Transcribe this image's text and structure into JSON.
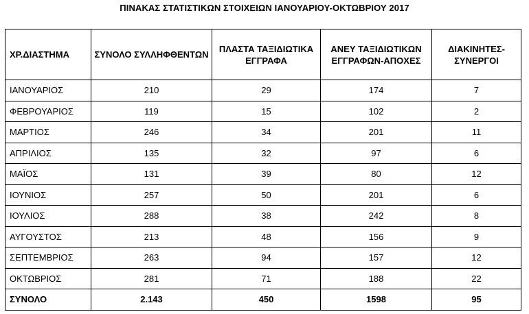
{
  "title": "ΠΙΝΑΚΑΣ ΣΤΑΤΙΣΤΙΚΩΝ ΣΤΟΙΧΕΙΩΝ ΙΑΝΟΥΑΡΙΟΥ-ΟΚΤΩΒΡΙΟΥ 2017",
  "headers": [
    "ΧΡ.ΔΙΑΣΤΗΜΑ",
    "ΣΥΝΟΛΟ ΣΥΛΛΗΦΘΕΝΤΩΝ",
    "ΠΛΑΣΤΑ ΤΑΞΙΔΙΩΤΙΚΑ ΕΓΓΡΑΦΑ",
    "ΑΝΕΥ ΤΑΞΙΔΙΩΤΙΚΩΝ ΕΓΓΡΑΦΩΝ-ΑΠΟΧΕΣ",
    "ΔΙΑΚΙΝΗΤΕΣ-ΣΥΝΕΡΓΟΙ"
  ],
  "rows": [
    [
      "ΙΑΝΟΥΑΡΙΟΣ",
      "210",
      "29",
      "174",
      "7"
    ],
    [
      "ΦΕΒΡΟΥΑΡΙΟΣ",
      "119",
      "15",
      "102",
      "2"
    ],
    [
      "ΜΑΡΤΙΟΣ",
      "246",
      "34",
      "201",
      "11"
    ],
    [
      "ΑΠΡΙΛΙΟΣ",
      "135",
      "32",
      "97",
      "6"
    ],
    [
      "ΜΑΪΟΣ",
      "131",
      "39",
      "80",
      "12"
    ],
    [
      "ΙΟΥΝΙΟΣ",
      "257",
      "50",
      "201",
      "6"
    ],
    [
      "ΙΟΥΛΙΟΣ",
      "288",
      "38",
      "242",
      "8"
    ],
    [
      "ΑΥΓΟΥΣΤΟΣ",
      "213",
      "48",
      "156",
      "9"
    ],
    [
      "ΣΕΠΤΕΜΒΡΙΟΣ",
      "263",
      "94",
      "157",
      "12"
    ],
    [
      "ΟΚΤΩΒΡΙΟΣ",
      "281",
      "71",
      "188",
      "22"
    ]
  ],
  "total": [
    "ΣΥΝΟΛΟ",
    "2.143",
    "450",
    "1598",
    "95"
  ]
}
